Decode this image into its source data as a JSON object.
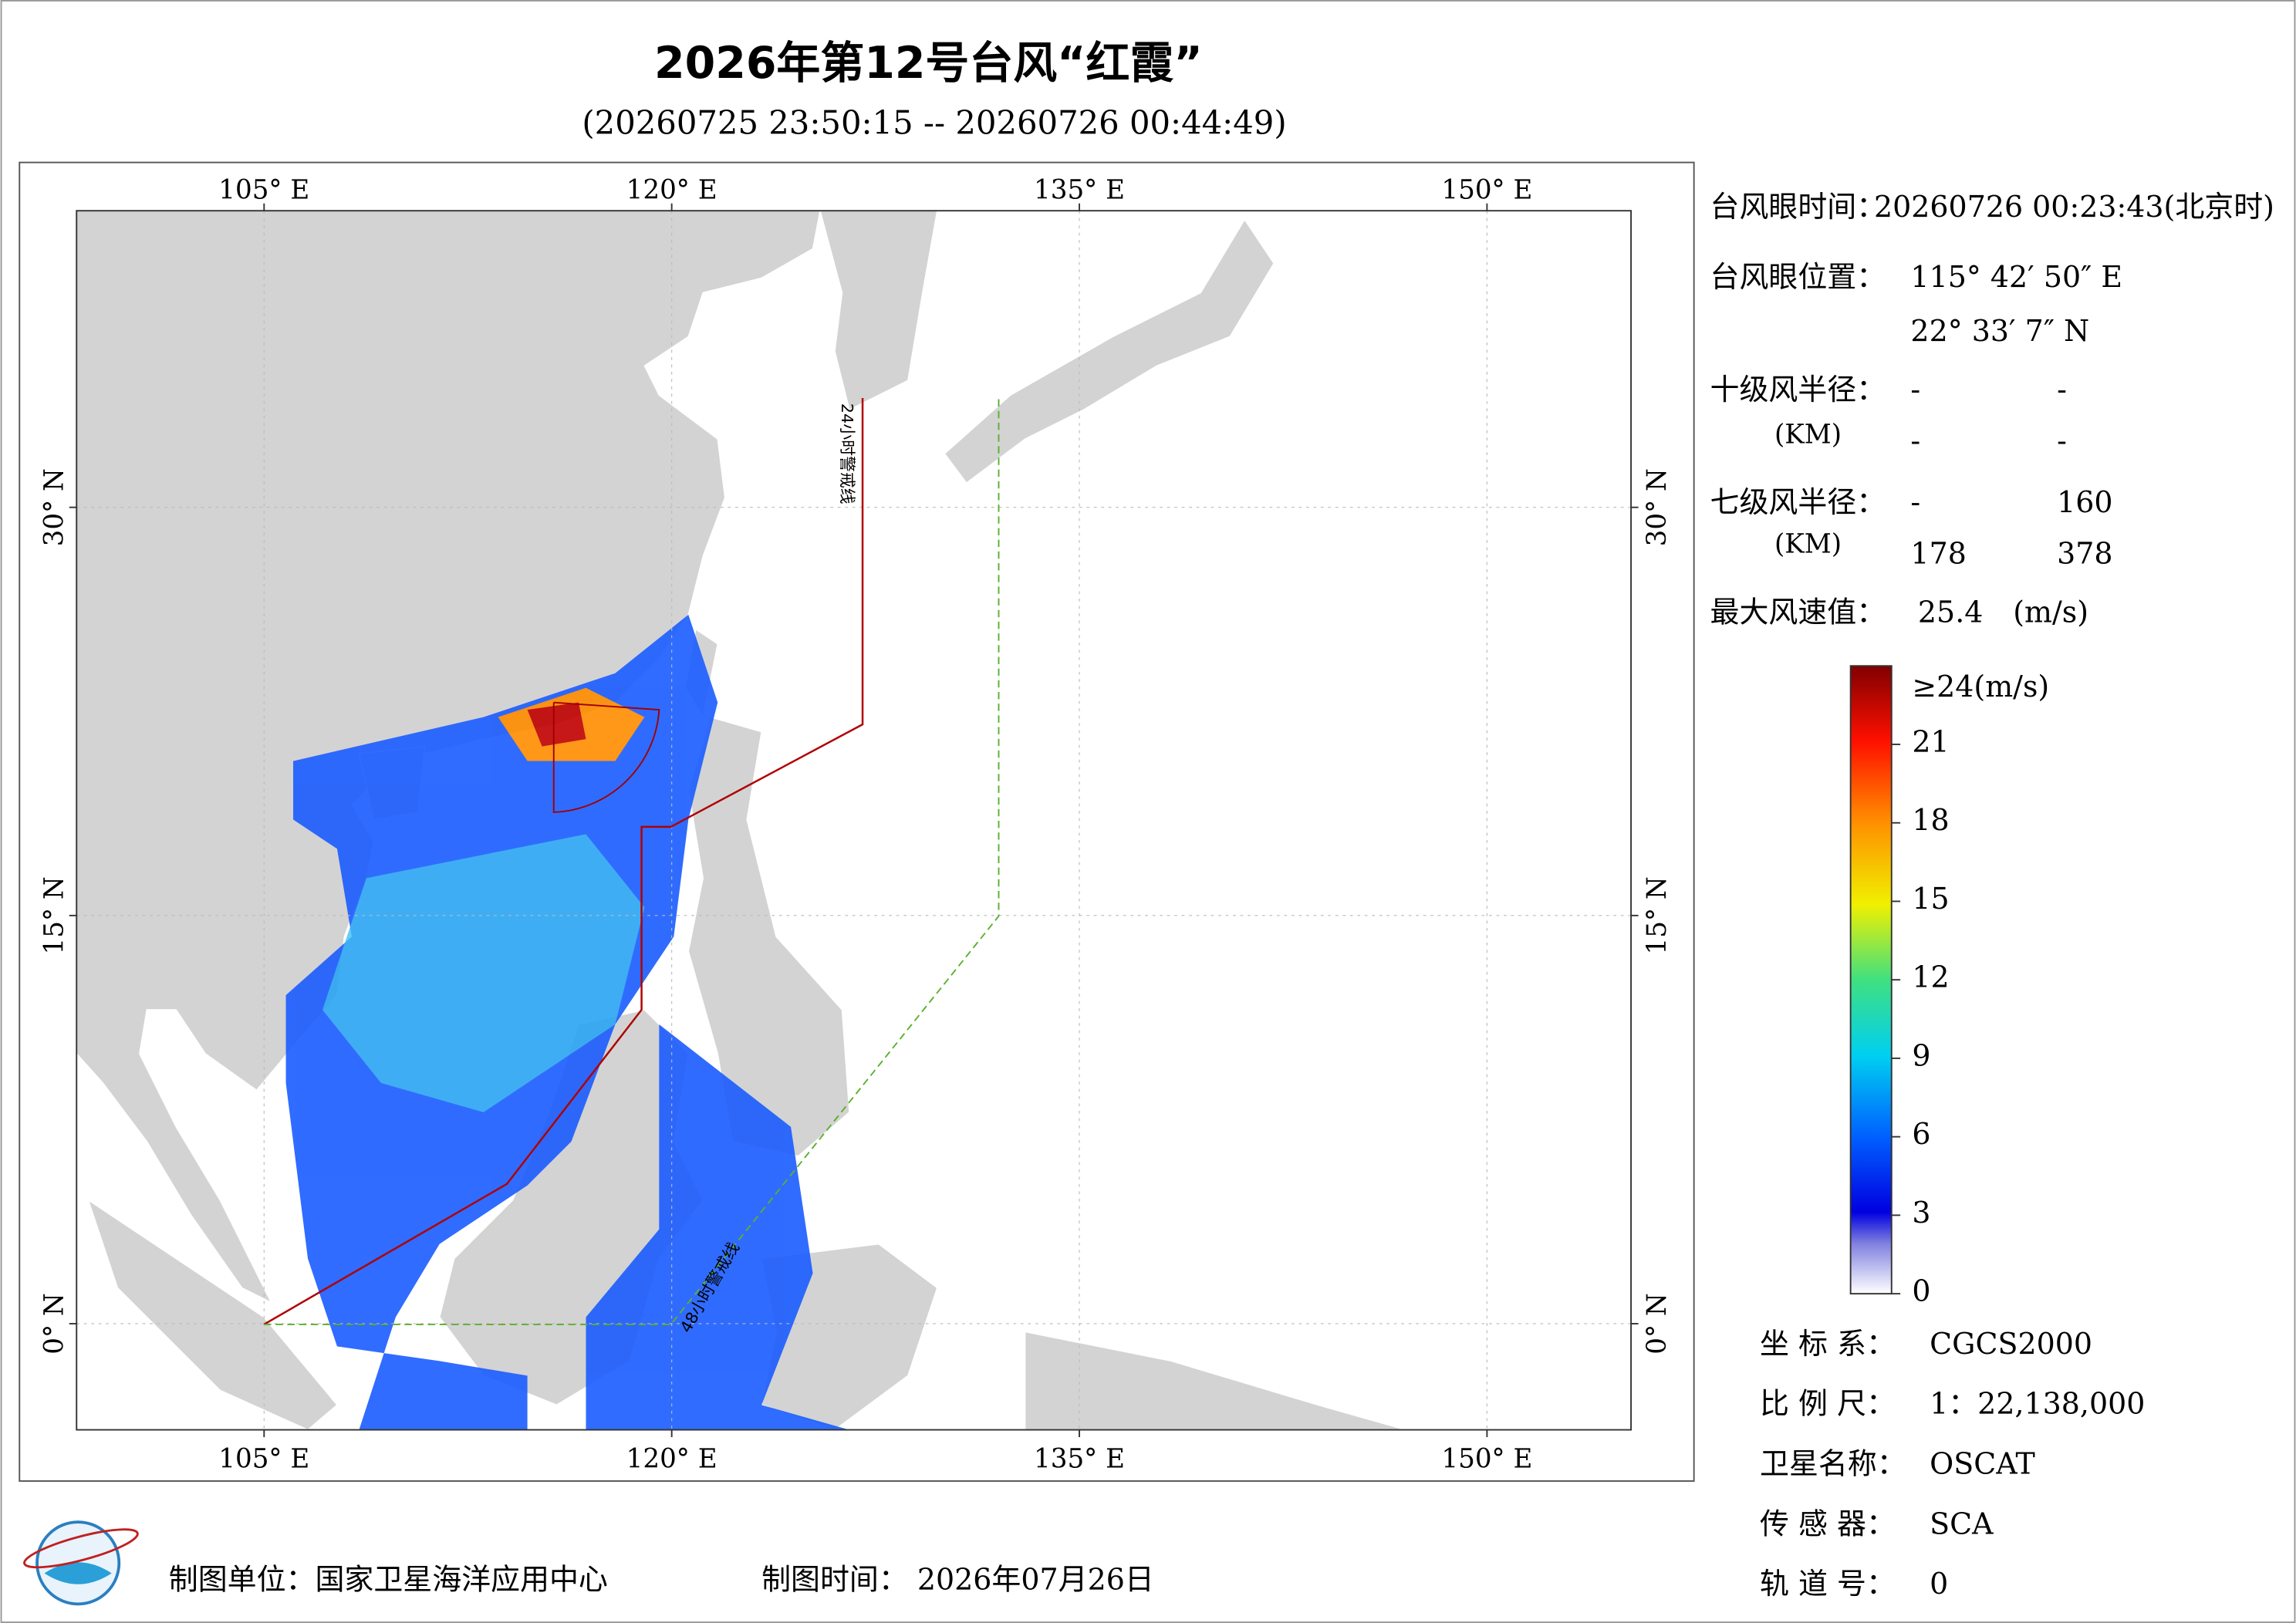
{
  "title": "2026年第12号台风“红霞”",
  "subtitle": "(20260725 23:50:15 -- 20260726 00:44:49)",
  "map": {
    "lon_range": [
      98.1,
      155.3
    ],
    "lat_range": [
      -3.9,
      40.9
    ],
    "lon_ticks": [
      {
        "value": 105,
        "label": "105° E"
      },
      {
        "value": 120,
        "label": "120° E"
      },
      {
        "value": 135,
        "label": "135° E"
      },
      {
        "value": 150,
        "label": "150° E"
      }
    ],
    "lat_ticks": [
      {
        "value": 0,
        "label": "0° N"
      },
      {
        "value": 15,
        "label": "15° N"
      },
      {
        "value": 30,
        "label": "30° N"
      }
    ],
    "warning_lines": [
      "24小时警戒线",
      "48小时警戒线"
    ]
  },
  "typhoon_info": {
    "eye_time_label": "台风眼时间：",
    "eye_time": "20260726 00:23:43(北京时)",
    "eye_position_label": "台风眼位置：",
    "eye_lon": "115° 42′ 50″ E",
    "eye_lat": "22° 33′ 7″ N",
    "r10_label": "十级风半径：",
    "r10_unit": "(KM)",
    "r10": [
      "-",
      "-",
      "-",
      "-"
    ],
    "r7_label": "七级风半径：",
    "r7_unit": "(KM)",
    "r7": [
      "-",
      160,
      178,
      378
    ],
    "max_wind_label": "最大风速值：",
    "max_wind": 25.4,
    "max_wind_unit": "(m/s)"
  },
  "colorbar": {
    "range": [
      0,
      24
    ],
    "ticks": [
      0,
      3,
      6,
      9,
      12,
      15,
      18,
      21
    ],
    "top_label": "≥24(m/s)"
  },
  "metadata": [
    {
      "label": "坐 标 系：",
      "value": "CGCS2000"
    },
    {
      "label": "比 例 尺：",
      "value": "1：22,138,000"
    },
    {
      "label": "卫星名称：",
      "value": "OSCAT"
    },
    {
      "label": "传 感 器：",
      "value": "SCA"
    },
    {
      "label": "轨 道 号：",
      "value": 0
    }
  ],
  "footer": {
    "unit": "制图单位：国家卫星海洋应用中心",
    "time": "制图时间：  2026年07月26日"
  }
}
